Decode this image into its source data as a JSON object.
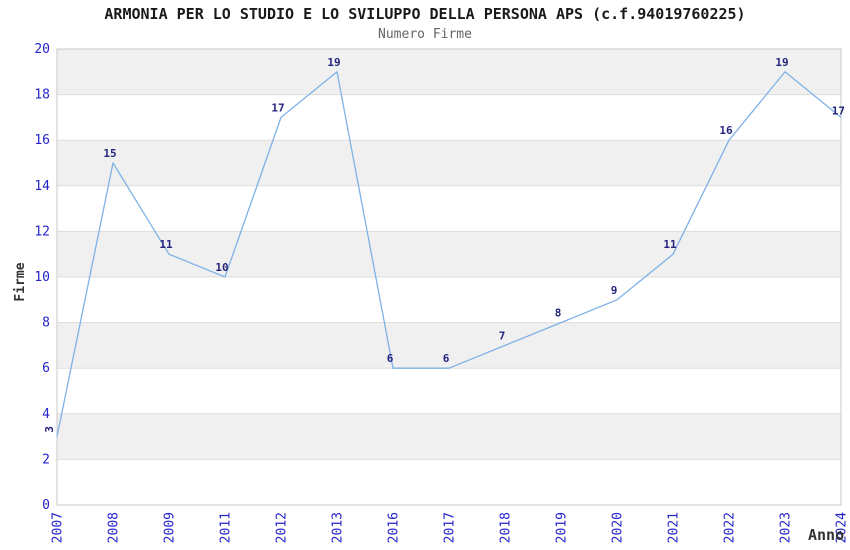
{
  "header": {
    "title": "ARMONIA PER LO STUDIO E LO SVILUPPO DELLA PERSONA APS (c.f.94019760225)",
    "subtitle": "Numero Firme"
  },
  "chart_data": {
    "type": "line",
    "title": "ARMONIA PER LO STUDIO E LO SVILUPPO DELLA PERSONA APS (c.f.94019760225)",
    "subtitle": "Numero Firme",
    "xlabel": "Anno",
    "ylabel": "Firme",
    "x": [
      "2007",
      "2008",
      "2009",
      "2011",
      "2012",
      "2013",
      "2016",
      "2017",
      "2018",
      "2019",
      "2020",
      "2021",
      "2022",
      "2023",
      "2024"
    ],
    "series": [
      {
        "name": "Numero Firme",
        "values": [
          3,
          15,
          11,
          10,
          17,
          19,
          6,
          6,
          7,
          8,
          9,
          11,
          16,
          19,
          17
        ]
      }
    ],
    "ylim": [
      0,
      20
    ],
    "ytick_step": 2,
    "yticks": [
      0,
      2,
      4,
      6,
      8,
      10,
      12,
      14,
      16,
      18,
      20
    ],
    "grid": "horizontal-bands-alternating",
    "legend": "none",
    "point_labels": true,
    "first_point_label_rotated": true,
    "x_tick_rotation_deg": -90,
    "colors": {
      "line": "#7fb2e6",
      "point_label": "#25257d",
      "tick_label": "#2424cd",
      "band": "#f0f0f0",
      "gridline": "#dddddd",
      "plot_border": "#c9c9c9",
      "title": "#1a1a1a",
      "subtitle": "#666666",
      "axis_title": "#333333",
      "background": "#ffffff"
    }
  }
}
